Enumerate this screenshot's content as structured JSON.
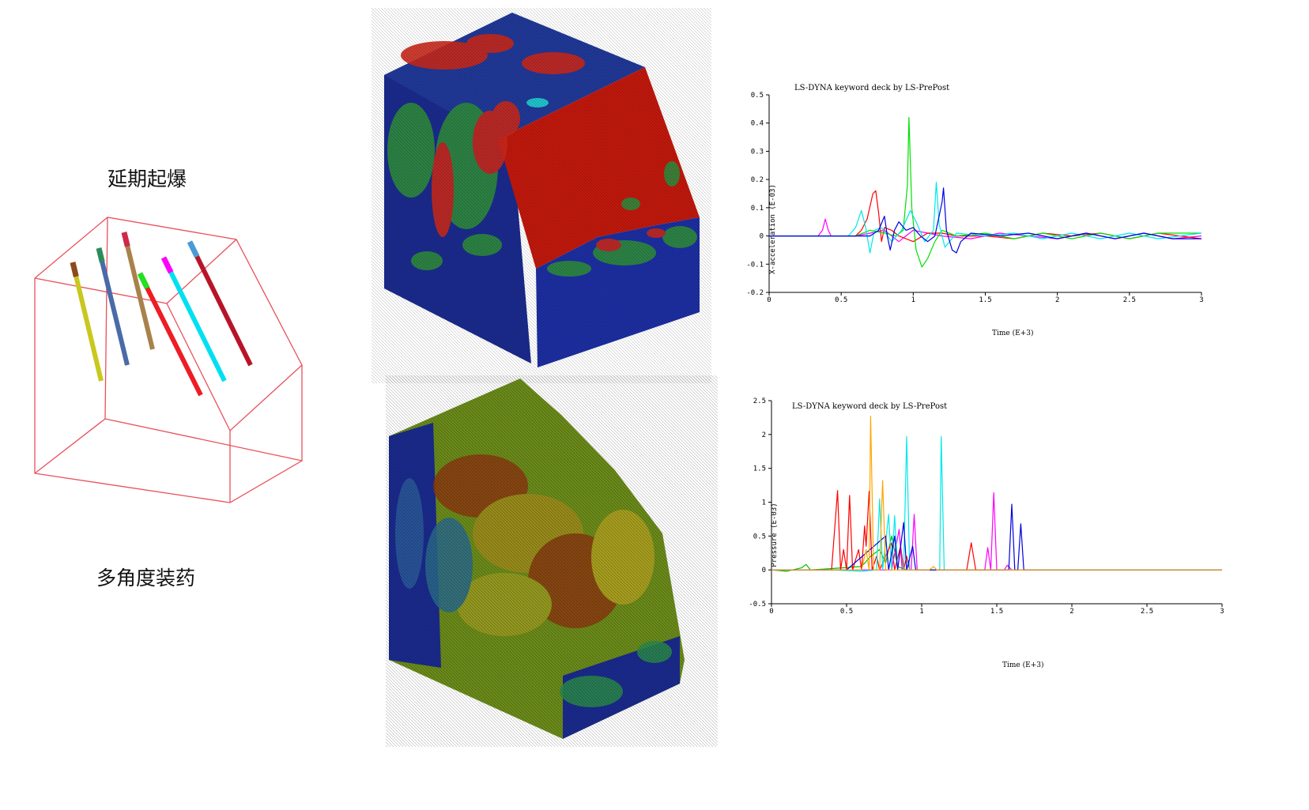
{
  "labels": {
    "delay_detonation": "延期起爆",
    "multi_angle_charge": "多角度装药"
  },
  "charge_colors": [
    "#c8c81e",
    "#4a6aa8",
    "#a8824a",
    "#ee1c24",
    "#00e0f0",
    "#b81428"
  ],
  "charge_tip_colors": [
    "#8c4a1e",
    "#2e8c5a",
    "#d02848",
    "#22e022",
    "#ff00ff",
    "#4a9ad8"
  ],
  "chart_data": [
    {
      "type": "line",
      "title": "LS-DYNA keyword deck by LS-PrePost",
      "xlabel": "Time (E+3)",
      "ylabel": "X-acceleration (E-03)",
      "xlim": [
        0,
        3
      ],
      "ylim": [
        -0.2,
        0.5
      ],
      "xticks": [
        "0",
        "0.5",
        "1",
        "1.5",
        "2",
        "2.5",
        "3"
      ],
      "yticks": [
        "-0.2",
        "-0.1",
        "0",
        "0.1",
        "0.2",
        "0.3",
        "0.4",
        "0.5"
      ],
      "series": [
        {
          "color": "#ff00ff",
          "points": [
            [
              0,
              0
            ],
            [
              0.34,
              0
            ],
            [
              0.37,
              0.02
            ],
            [
              0.39,
              0.06
            ],
            [
              0.41,
              0.02
            ],
            [
              0.43,
              0
            ],
            [
              0.6,
              0
            ],
            [
              0.7,
              0.01
            ],
            [
              0.8,
              0.02
            ],
            [
              0.9,
              -0.02
            ],
            [
              1.0,
              0.02
            ],
            [
              1.1,
              0.01
            ],
            [
              1.2,
              0
            ],
            [
              1.4,
              -0.01
            ],
            [
              1.6,
              0.01
            ],
            [
              1.8,
              0
            ],
            [
              2.0,
              -0.01
            ],
            [
              2.2,
              0.01
            ],
            [
              2.4,
              -0.01
            ],
            [
              2.6,
              0.01
            ],
            [
              2.8,
              -0.01
            ],
            [
              3.0,
              0
            ]
          ]
        },
        {
          "color": "#ff0000",
          "points": [
            [
              0,
              0
            ],
            [
              0.6,
              0
            ],
            [
              0.64,
              0.02
            ],
            [
              0.68,
              0.06
            ],
            [
              0.72,
              0.15
            ],
            [
              0.74,
              0.16
            ],
            [
              0.76,
              0.08
            ],
            [
              0.78,
              -0.02
            ],
            [
              0.8,
              0.03
            ],
            [
              0.85,
              0.02
            ],
            [
              0.9,
              0
            ],
            [
              1.0,
              -0.02
            ],
            [
              1.1,
              0.01
            ],
            [
              1.2,
              0.01
            ],
            [
              1.3,
              0
            ],
            [
              1.5,
              0
            ],
            [
              1.7,
              -0.01
            ],
            [
              1.9,
              0.01
            ],
            [
              2.1,
              0
            ],
            [
              2.3,
              0.01
            ],
            [
              2.5,
              -0.01
            ],
            [
              2.7,
              0.01
            ],
            [
              3.0,
              -0.01
            ]
          ]
        },
        {
          "color": "#00e000",
          "points": [
            [
              0,
              0
            ],
            [
              0.6,
              0
            ],
            [
              0.7,
              0.02
            ],
            [
              0.8,
              0.01
            ],
            [
              0.88,
              0
            ],
            [
              0.93,
              0.02
            ],
            [
              0.96,
              0.18
            ],
            [
              0.97,
              0.42
            ],
            [
              0.99,
              0.1
            ],
            [
              1.02,
              -0.05
            ],
            [
              1.06,
              -0.11
            ],
            [
              1.1,
              -0.08
            ],
            [
              1.15,
              -0.02
            ],
            [
              1.2,
              0.02
            ],
            [
              1.3,
              0
            ],
            [
              1.5,
              0.01
            ],
            [
              1.7,
              -0.01
            ],
            [
              1.9,
              0.01
            ],
            [
              2.1,
              -0.01
            ],
            [
              2.3,
              0.01
            ],
            [
              2.5,
              -0.01
            ],
            [
              2.7,
              0.01
            ],
            [
              3.0,
              0.01
            ]
          ]
        },
        {
          "color": "#00e8e8",
          "points": [
            [
              0,
              0
            ],
            [
              0.55,
              0
            ],
            [
              0.6,
              0.03
            ],
            [
              0.64,
              0.09
            ],
            [
              0.67,
              0.03
            ],
            [
              0.7,
              -0.06
            ],
            [
              0.73,
              0.02
            ],
            [
              0.78,
              0.03
            ],
            [
              0.85,
              -0.02
            ],
            [
              0.92,
              0.02
            ],
            [
              0.98,
              0.09
            ],
            [
              1.02,
              0.05
            ],
            [
              1.08,
              -0.02
            ],
            [
              1.14,
              0.02
            ],
            [
              1.16,
              0.19
            ],
            [
              1.18,
              0.04
            ],
            [
              1.22,
              -0.04
            ],
            [
              1.3,
              0.01
            ],
            [
              1.5,
              0
            ],
            [
              1.7,
              0.01
            ],
            [
              1.9,
              -0.01
            ],
            [
              2.1,
              0.01
            ],
            [
              2.3,
              -0.01
            ],
            [
              2.5,
              0.01
            ],
            [
              2.7,
              -0.01
            ],
            [
              3.0,
              0.01
            ]
          ]
        },
        {
          "color": "#0000e0",
          "points": [
            [
              0,
              0
            ],
            [
              0.7,
              0
            ],
            [
              0.76,
              0.02
            ],
            [
              0.8,
              0.07
            ],
            [
              0.82,
              0
            ],
            [
              0.84,
              -0.05
            ],
            [
              0.87,
              0.02
            ],
            [
              0.9,
              0.05
            ],
            [
              0.95,
              0.02
            ],
            [
              1.0,
              0.03
            ],
            [
              1.05,
              0
            ],
            [
              1.1,
              -0.02
            ],
            [
              1.15,
              0
            ],
            [
              1.2,
              0.12
            ],
            [
              1.21,
              0.17
            ],
            [
              1.23,
              0.02
            ],
            [
              1.27,
              -0.05
            ],
            [
              1.3,
              -0.06
            ],
            [
              1.33,
              -0.02
            ],
            [
              1.4,
              0.01
            ],
            [
              1.6,
              0
            ],
            [
              1.8,
              0.01
            ],
            [
              2.0,
              -0.01
            ],
            [
              2.2,
              0.01
            ],
            [
              2.4,
              -0.01
            ],
            [
              2.6,
              0.01
            ],
            [
              2.8,
              -0.01
            ],
            [
              3.0,
              -0.01
            ]
          ]
        }
      ]
    },
    {
      "type": "line",
      "title": "LS-DYNA keyword deck by LS-PrePost",
      "xlabel": "Time (E+3)",
      "ylabel": "Pressure (E-03)",
      "xlim": [
        0,
        3
      ],
      "ylim": [
        -0.5,
        2.5
      ],
      "xticks": [
        "0",
        "0.5",
        "1",
        "1.5",
        "2",
        "2.5",
        "3"
      ],
      "yticks": [
        "-0.5",
        "0",
        "0.5",
        "1",
        "1.5",
        "2",
        "2.5"
      ],
      "series": [
        {
          "color": "#00c000",
          "points": [
            [
              0,
              0
            ],
            [
              0.1,
              -0.02
            ],
            [
              0.2,
              0.03
            ],
            [
              0.23,
              0.08
            ],
            [
              0.26,
              0
            ],
            [
              0.4,
              0.02
            ],
            [
              0.6,
              0.05
            ],
            [
              0.66,
              0.2
            ],
            [
              0.72,
              0.3
            ],
            [
              0.76,
              0.1
            ],
            [
              0.8,
              0.5
            ],
            [
              0.84,
              0.05
            ],
            [
              0.9,
              0
            ],
            [
              1.0,
              0
            ],
            [
              1.5,
              0
            ],
            [
              2.0,
              0
            ],
            [
              3.0,
              0
            ]
          ]
        },
        {
          "color": "#ff0000",
          "points": [
            [
              0,
              0
            ],
            [
              0.3,
              0
            ],
            [
              0.4,
              0
            ],
            [
              0.44,
              1.17
            ],
            [
              0.46,
              0
            ],
            [
              0.48,
              0.3
            ],
            [
              0.5,
              0
            ],
            [
              0.52,
              1.1
            ],
            [
              0.54,
              0
            ],
            [
              0.58,
              0.3
            ],
            [
              0.6,
              0
            ],
            [
              0.62,
              0.65
            ],
            [
              0.63,
              0.35
            ],
            [
              0.65,
              1.16
            ],
            [
              0.67,
              0
            ],
            [
              0.7,
              0.2
            ],
            [
              0.72,
              0
            ],
            [
              0.8,
              0.4
            ],
            [
              0.82,
              0
            ],
            [
              0.86,
              0.35
            ],
            [
              0.88,
              0
            ],
            [
              0.9,
              0.2
            ],
            [
              0.92,
              0
            ],
            [
              1.0,
              0
            ],
            [
              1.3,
              0
            ],
            [
              1.33,
              0.4
            ],
            [
              1.36,
              0
            ],
            [
              1.4,
              0
            ],
            [
              1.5,
              0
            ],
            [
              2.0,
              0
            ],
            [
              3.0,
              0
            ]
          ]
        },
        {
          "color": "#ff00ff",
          "points": [
            [
              0,
              0
            ],
            [
              0.4,
              0
            ],
            [
              0.8,
              0
            ],
            [
              0.85,
              0.6
            ],
            [
              0.87,
              0
            ],
            [
              0.93,
              0
            ],
            [
              0.95,
              0.82
            ],
            [
              0.97,
              0
            ],
            [
              1.0,
              0
            ],
            [
              1.3,
              0
            ],
            [
              1.42,
              0
            ],
            [
              1.44,
              0.33
            ],
            [
              1.46,
              0
            ],
            [
              1.48,
              1.14
            ],
            [
              1.5,
              0
            ],
            [
              1.55,
              0
            ],
            [
              1.57,
              0.07
            ],
            [
              1.6,
              0
            ],
            [
              2.0,
              0
            ],
            [
              3.0,
              0
            ]
          ]
        },
        {
          "color": "#00e8e8",
          "points": [
            [
              0,
              0
            ],
            [
              0.4,
              0
            ],
            [
              0.6,
              -0.02
            ],
            [
              0.7,
              0
            ],
            [
              0.72,
              1.05
            ],
            [
              0.74,
              0
            ],
            [
              0.78,
              0.82
            ],
            [
              0.8,
              0
            ],
            [
              0.82,
              0.8
            ],
            [
              0.84,
              0
            ],
            [
              0.88,
              0
            ],
            [
              0.9,
              1.97
            ],
            [
              0.92,
              0
            ],
            [
              0.96,
              0
            ],
            [
              1.0,
              0
            ],
            [
              1.12,
              0
            ],
            [
              1.13,
              1.97
            ],
            [
              1.15,
              0
            ],
            [
              1.2,
              0
            ],
            [
              1.5,
              0
            ],
            [
              2.0,
              0
            ],
            [
              3.0,
              0
            ]
          ]
        },
        {
          "color": "#0000e0",
          "points": [
            [
              0,
              0
            ],
            [
              0.5,
              0
            ],
            [
              0.76,
              0.5
            ],
            [
              0.78,
              0
            ],
            [
              0.82,
              0.5
            ],
            [
              0.84,
              0
            ],
            [
              0.88,
              0.7
            ],
            [
              0.9,
              0
            ],
            [
              0.94,
              0.35
            ],
            [
              0.96,
              0
            ],
            [
              1.0,
              0
            ],
            [
              1.5,
              0
            ],
            [
              1.58,
              0
            ],
            [
              1.6,
              0.97
            ],
            [
              1.62,
              0
            ],
            [
              1.64,
              0
            ],
            [
              1.66,
              0.68
            ],
            [
              1.68,
              0
            ],
            [
              2.0,
              0
            ],
            [
              3.0,
              0
            ]
          ]
        },
        {
          "color": "#ffa500",
          "points": [
            [
              0,
              0
            ],
            [
              0.4,
              0
            ],
            [
              0.6,
              0
            ],
            [
              0.63,
              0.3
            ],
            [
              0.65,
              0
            ],
            [
              0.66,
              2.27
            ],
            [
              0.68,
              0
            ],
            [
              0.72,
              0
            ],
            [
              0.74,
              1.32
            ],
            [
              0.76,
              0
            ],
            [
              0.8,
              0
            ],
            [
              1.0,
              0
            ],
            [
              1.05,
              0
            ],
            [
              1.08,
              0.05
            ],
            [
              1.1,
              0
            ],
            [
              1.2,
              0
            ],
            [
              2.0,
              0
            ],
            [
              3.0,
              0
            ]
          ]
        }
      ]
    }
  ]
}
